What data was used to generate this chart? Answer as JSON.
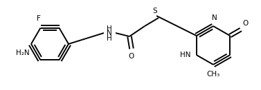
{
  "bg": "#ffffff",
  "lc": "#000000",
  "tc": "#000000",
  "lw": 1.4,
  "fs": 7.5,
  "figsize": [
    3.77,
    1.31
  ],
  "dpi": 100,
  "label_F": "F",
  "label_H2N": "H₂N",
  "label_NH": "NH",
  "label_H": "H",
  "label_O": "O",
  "label_S": "S",
  "label_N": "N",
  "label_HN": "HN",
  "label_O2": "O",
  "label_CH3": "CH₃"
}
